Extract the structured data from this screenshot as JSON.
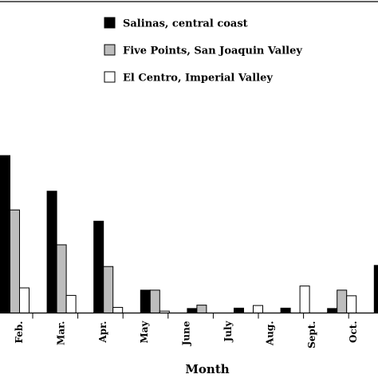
{
  "chart_data": {
    "type": "bar",
    "title": "",
    "xlabel": "Month",
    "ylabel": "",
    "categories": [
      "Feb.",
      "Mar.",
      "Apr.",
      "May",
      "June",
      "July",
      "Aug.",
      "Sept.",
      "Oct."
    ],
    "series": [
      {
        "name": "Salinas, central coast",
        "color": "#000000",
        "values": [
          42,
          32.5,
          24.5,
          6.1,
          1.2,
          1.3,
          1.3,
          1.2,
          12.7
        ]
      },
      {
        "name": "Five Points, San Joaquin Valley",
        "color": "#bdbdbd",
        "values": [
          27.5,
          18.2,
          12.4,
          6.1,
          2.1,
          0,
          0,
          6.1,
          4.2
        ]
      },
      {
        "name": "El Centro, Imperial Valley",
        "color": "#ffffff",
        "values": [
          6.7,
          4.7,
          1.5,
          0.5,
          0,
          2.0,
          7.2,
          4.6,
          6.2
        ]
      }
    ],
    "ylim": [
      0,
      60
    ],
    "grid": false,
    "legend_position": "top-center"
  }
}
